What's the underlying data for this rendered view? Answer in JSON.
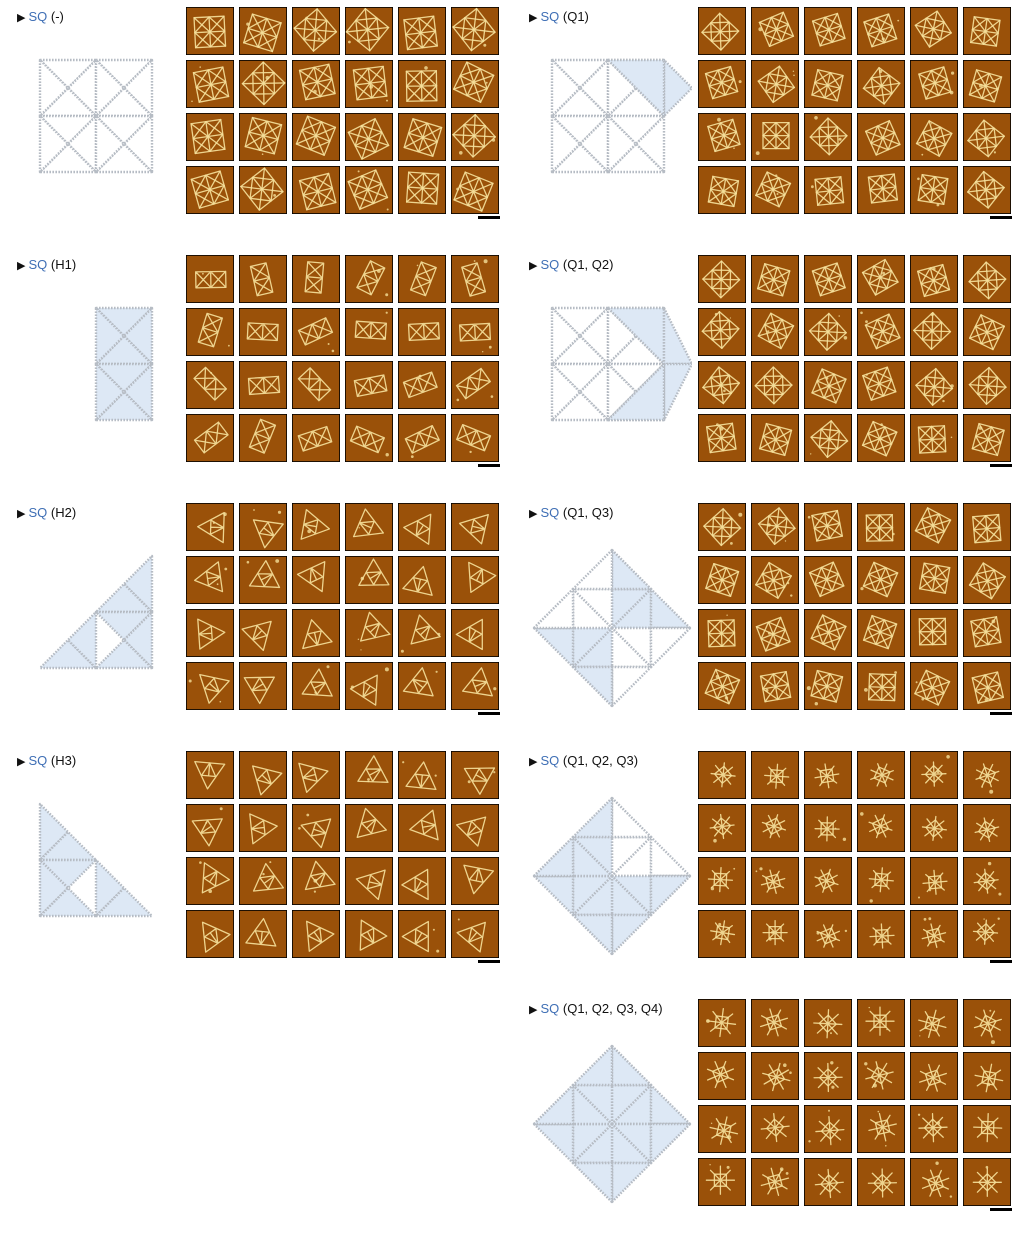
{
  "colors": {
    "label_accent": "#3f6fb5",
    "afm_background": "#9a5109",
    "afm_structure": "#f5e09a",
    "schematic_fill": "#dde8f5",
    "schematic_stroke": "#b6bcc4"
  },
  "panels": [
    {
      "id": "sq-none",
      "prefix": "SQ",
      "suffix": "(-)",
      "shape": "square-none",
      "motif": "square-full"
    },
    {
      "id": "sq-q1",
      "prefix": "SQ",
      "suffix": "(Q1)",
      "shape": "q1",
      "motif": "square-q1"
    },
    {
      "id": "sq-h1",
      "prefix": "SQ",
      "suffix": "(H1)",
      "shape": "h1",
      "motif": "rectangle"
    },
    {
      "id": "sq-q1-q2",
      "prefix": "SQ",
      "suffix": "(Q1, Q2)",
      "shape": "q1q2",
      "motif": "square-q2"
    },
    {
      "id": "sq-h2",
      "prefix": "SQ",
      "suffix": "(H2)",
      "shape": "h2",
      "motif": "triangle-right"
    },
    {
      "id": "sq-q1-q3",
      "prefix": "SQ",
      "suffix": "(Q1, Q3)",
      "shape": "q1q3",
      "motif": "square-q13"
    },
    {
      "id": "sq-h3",
      "prefix": "SQ",
      "suffix": "(H3)",
      "shape": "h3",
      "motif": "triangle-left"
    },
    {
      "id": "sq-q1-q2-q3",
      "prefix": "SQ",
      "suffix": "(Q1, Q2, Q3)",
      "shape": "q1q2q3",
      "motif": "star-small"
    },
    {
      "id": "sq-q1-q2-q3-q4",
      "prefix": "SQ",
      "suffix": "(Q1, Q2, Q3, Q4)",
      "shape": "q1q2q3q4",
      "motif": "star"
    }
  ]
}
